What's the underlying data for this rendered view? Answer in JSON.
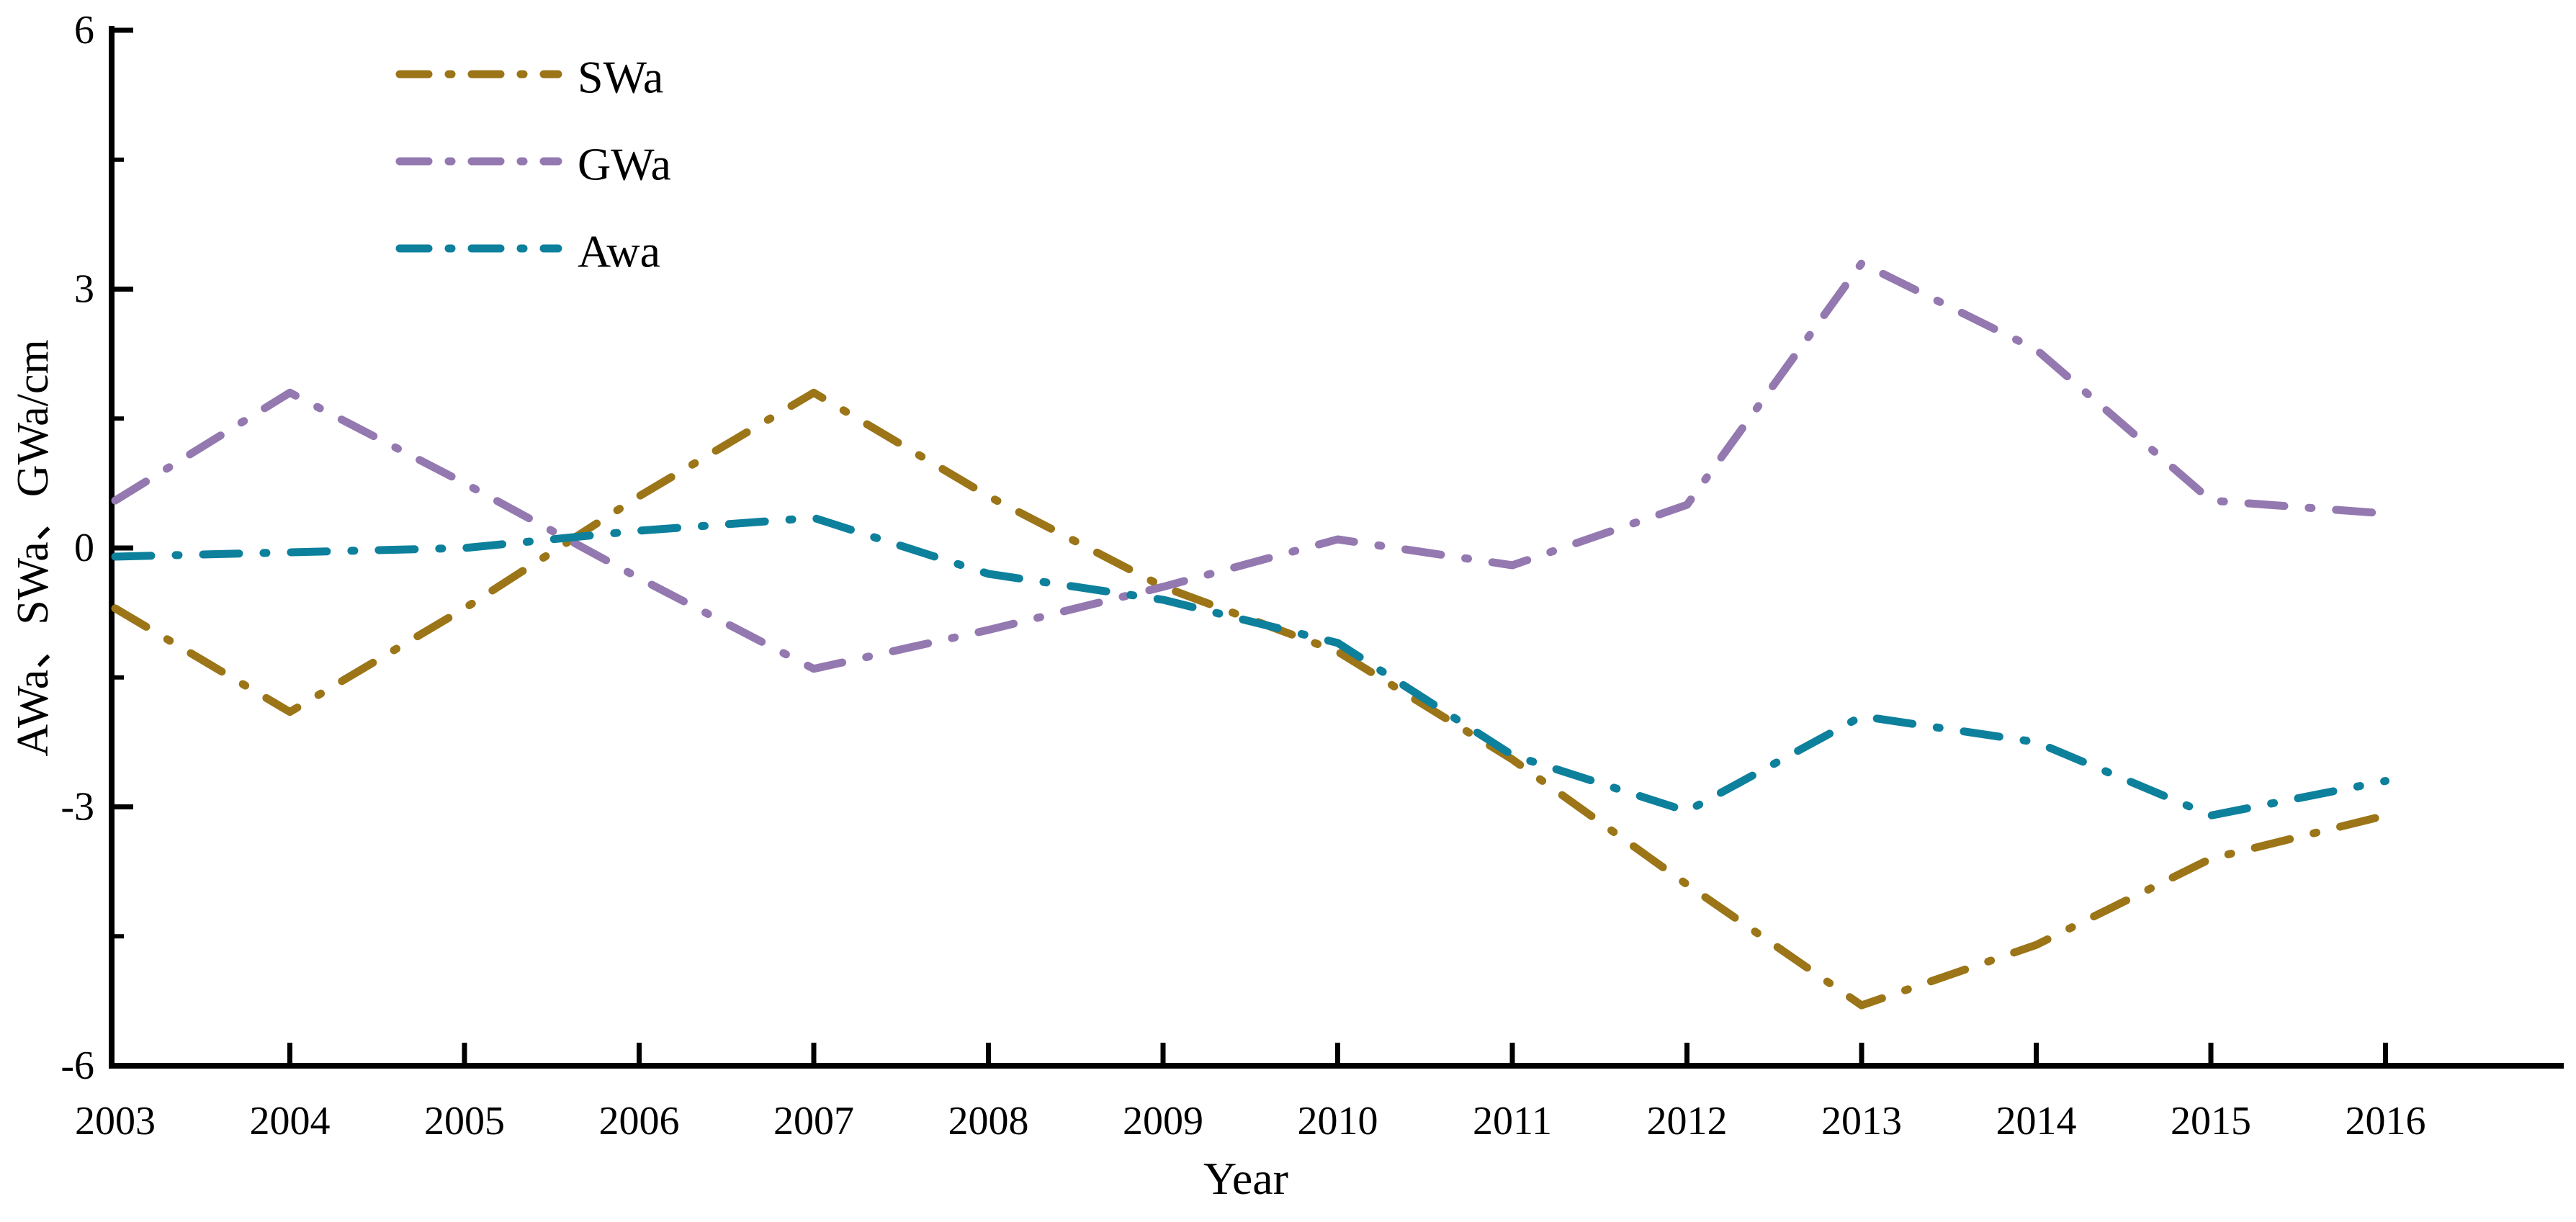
{
  "chart_data": {
    "type": "line",
    "title": "",
    "xlabel": "Year",
    "ylabel": "AWa、SWa、GWa/cm",
    "x": [
      2003,
      2004,
      2005,
      2006,
      2007,
      2008,
      2009,
      2010,
      2011,
      2012,
      2013,
      2014,
      2015,
      2016
    ],
    "x_tick_labels": [
      "2003",
      "2004",
      "2005",
      "2006",
      "2007",
      "2008",
      "2009",
      "2010",
      "2011",
      "2012",
      "2013",
      "2014",
      "2015",
      "2016"
    ],
    "series": [
      {
        "name": "SWa",
        "color": "#9b7517",
        "line_style": "dash-dot",
        "values": [
          -0.7,
          -1.9,
          -0.7,
          0.6,
          1.8,
          0.6,
          -0.45,
          -1.2,
          -2.45,
          -3.9,
          -5.3,
          -4.6,
          -3.6,
          -3.1
        ]
      },
      {
        "name": "GWa",
        "color": "#9478b0",
        "line_style": "dash-dot",
        "values": [
          0.55,
          1.8,
          0.75,
          -0.35,
          -1.4,
          -0.95,
          -0.45,
          0.1,
          -0.2,
          0.5,
          3.3,
          2.3,
          0.55,
          0.4
        ]
      },
      {
        "name": "Awa",
        "color": "#0d809c",
        "line_style": "dash-dot",
        "values": [
          -0.1,
          -0.05,
          0.0,
          0.2,
          0.35,
          -0.3,
          -0.6,
          -1.1,
          -2.4,
          -3.05,
          -1.95,
          -2.25,
          -3.1,
          -2.7
        ]
      }
    ],
    "ylim": [
      -6,
      6
    ],
    "xlim_years": [
      2003,
      2017
    ],
    "yticks": {
      "major": [
        {
          "v": 6,
          "label": "6"
        },
        {
          "v": 3,
          "label": "3"
        },
        {
          "v": 0,
          "label": "0"
        },
        {
          "v": -3,
          "label": "-3"
        },
        {
          "v": -6,
          "label": "-6"
        }
      ],
      "minor": [
        4.5,
        1.5,
        -1.5,
        -4.5
      ]
    },
    "grid": false,
    "legend": {
      "position": "top-left-inside",
      "items": [
        "SWa",
        "GWa",
        "Awa"
      ]
    },
    "axis_color": "#000000",
    "background_color": "#ffffff"
  }
}
